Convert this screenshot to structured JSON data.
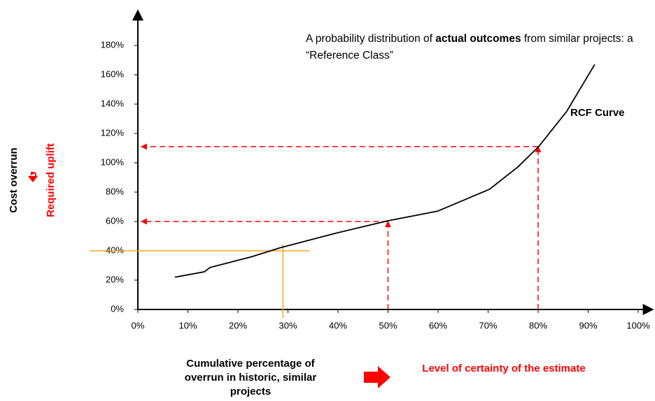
{
  "chart_data": {
    "type": "line",
    "annotation": [
      "A probability distribution of ",
      "actual outcomes",
      " from similar projects: a “Reference Class”"
    ],
    "y_label": [
      "Cost overrun",
      "Required uplift"
    ],
    "x_label": [
      "Cumulative percentage of overrun in historic, similar projects",
      "Level of certainty of the estimate"
    ],
    "xlim": [
      0,
      100
    ],
    "ylim": [
      0,
      180
    ],
    "xticks": [
      {
        "value": 0,
        "label": "0%"
      },
      {
        "value": 10,
        "label": "10%"
      },
      {
        "value": 20,
        "label": "20%"
      },
      {
        "value": 30,
        "label": "30%"
      },
      {
        "value": 40,
        "label": "40%"
      },
      {
        "value": 50,
        "label": "50%"
      },
      {
        "value": 60,
        "label": "60%"
      },
      {
        "value": 70,
        "label": "70%"
      },
      {
        "value": 80,
        "label": "80%"
      },
      {
        "value": 90,
        "label": "90%"
      },
      {
        "value": 100,
        "label": "100%"
      }
    ],
    "yticks": [
      {
        "value": 0,
        "label": "0%"
      },
      {
        "value": 20,
        "label": "20%"
      },
      {
        "value": 40,
        "label": "40%"
      },
      {
        "value": 60,
        "label": "60%"
      },
      {
        "value": 80,
        "label": "80%"
      },
      {
        "value": 100,
        "label": "100%"
      },
      {
        "value": 120,
        "label": "120%"
      },
      {
        "value": 140,
        "label": "140%"
      },
      {
        "value": 160,
        "label": "160%"
      },
      {
        "value": 180,
        "label": "180%"
      }
    ],
    "x": [
      7.4,
      13.3,
      14.4,
      22.8,
      28.4,
      39.6,
      50,
      59.9,
      70.3,
      75.9,
      80.1,
      85.7,
      91.3
    ],
    "series": [
      {
        "name": "RCF Curve",
        "color": "#000000",
        "values": [
          22,
          25.7,
          28.6,
          36,
          42,
          52,
          60.5,
          67,
          82,
          97,
          111,
          135,
          167
        ]
      }
    ],
    "certainty_markers": {
      "color": "#ff0000",
      "points": [
        {
          "x": 50,
          "y": 60
        },
        {
          "x": 80,
          "y": 111
        }
      ]
    },
    "reference_lines": {
      "color": "#f5a623",
      "x": 29,
      "y": 40
    }
  }
}
